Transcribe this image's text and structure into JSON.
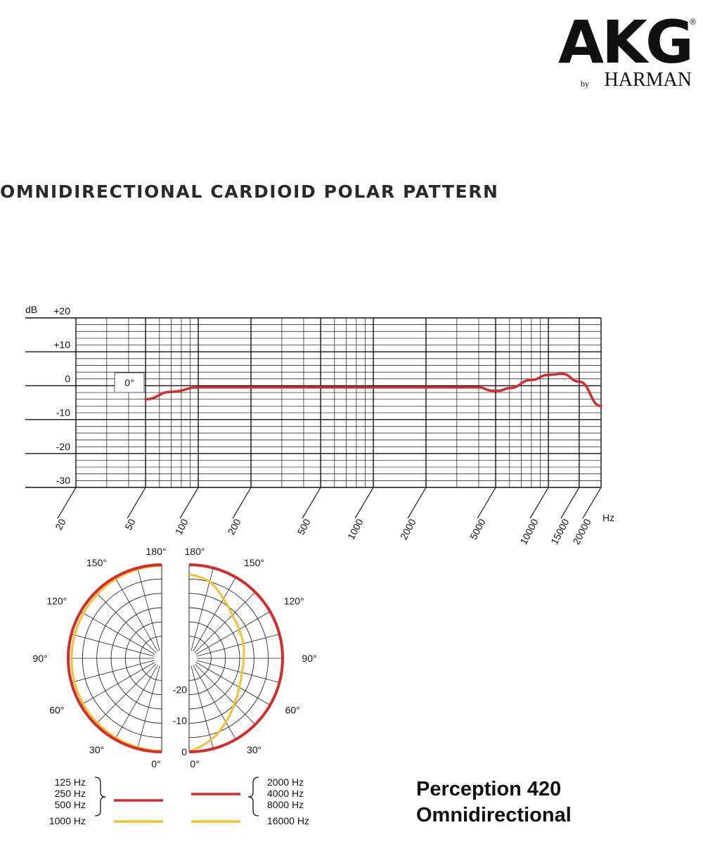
{
  "brand": {
    "logo_main": "AKG",
    "registered_mark": "®",
    "logo_by": "by",
    "logo_sub": "HARMAN"
  },
  "heading": "OMNIDIRECTIONAL CARDIOID POLAR PATTERN",
  "model": {
    "line1": "Perception 420",
    "line2": "Omnidirectional"
  },
  "colors": {
    "low_band": "#d52b2b",
    "high_band": "#f3c12e"
  },
  "chart_data": [
    {
      "type": "line",
      "title": "",
      "xlabel": "Hz",
      "ylabel": "dB",
      "x_scale": "log",
      "xlim": [
        20,
        20000
      ],
      "ylim": [
        -30,
        20
      ],
      "x_ticks": [
        "20",
        "50",
        "100",
        "200",
        "500",
        "1000",
        "2000",
        "5000",
        "10000",
        "15000",
        "20000"
      ],
      "y_ticks": [
        "+20",
        "+10",
        "0",
        "-10",
        "-20",
        "-30"
      ],
      "annotation": "0°",
      "grid": true,
      "series": [
        {
          "color": "#d52b2b",
          "x": [
            50,
            70,
            100,
            200,
            500,
            1000,
            2000,
            4000,
            4800,
            5200,
            6000,
            8000,
            10000,
            12000,
            15000,
            20000
          ],
          "y": [
            -4,
            -1.8,
            -0.5,
            -0.5,
            -0.5,
            -0.5,
            -0.5,
            -0.5,
            -1.5,
            -1.5,
            -0.7,
            1.7,
            3.2,
            3.5,
            1.2,
            -6
          ]
        }
      ]
    },
    {
      "type": "polar",
      "angle_labels_left": [
        "180°",
        "150°",
        "120°",
        "90°",
        "60°",
        "30°",
        "0°"
      ],
      "angle_labels_right": [
        "180°",
        "150°",
        "120°",
        "90°",
        "60°",
        "30°",
        "0°"
      ],
      "radial_labels": [
        "-20",
        "-10",
        "0"
      ],
      "rlim": [
        -30,
        0
      ],
      "grid": true,
      "series_left": [
        {
          "name": "125 Hz / 250 Hz / 500 Hz",
          "color": "#d52b2b",
          "angle": [
            0,
            30,
            60,
            90,
            120,
            150,
            180
          ],
          "db": [
            0,
            0,
            0,
            0,
            0,
            0,
            0
          ]
        },
        {
          "name": "1000 Hz",
          "color": "#f3c12e",
          "angle": [
            0,
            30,
            60,
            90,
            120,
            150,
            180
          ],
          "db": [
            -0.3,
            -0.6,
            -0.9,
            -1.1,
            -1.1,
            -0.6,
            -0.3
          ]
        }
      ],
      "series_right": [
        {
          "name": "2000 Hz / 4000 Hz / 8000 Hz",
          "color": "#d52b2b",
          "angle": [
            0,
            30,
            60,
            90,
            120,
            150,
            180
          ],
          "db": [
            0,
            0,
            0,
            0,
            0,
            0,
            0
          ]
        },
        {
          "name": "16000 Hz",
          "color": "#f3c12e",
          "angle": [
            0,
            10,
            20,
            30,
            45,
            60,
            75,
            90,
            105,
            120,
            135,
            150,
            165,
            180
          ],
          "db": [
            0,
            -2,
            -4,
            -6.5,
            -9.5,
            -11.5,
            -12.5,
            -12.5,
            -12,
            -11.5,
            -10.5,
            -8,
            -4.5,
            -3
          ]
        }
      ],
      "legend": {
        "left_group": [
          "125 Hz",
          "250 Hz",
          "500 Hz"
        ],
        "left_single": "1000 Hz",
        "right_group": [
          "2000 Hz",
          "4000 Hz",
          "8000 Hz"
        ],
        "right_single": "16000 Hz"
      }
    }
  ]
}
